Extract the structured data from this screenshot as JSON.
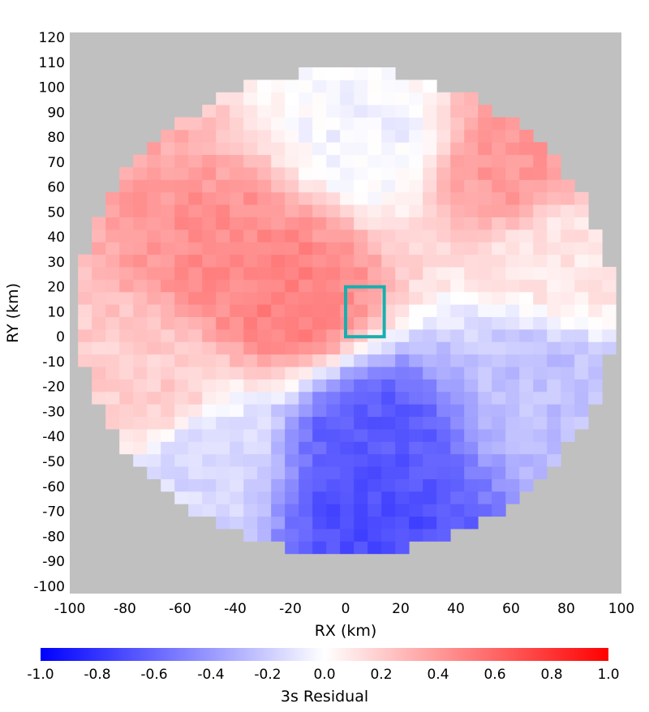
{
  "chart_data": {
    "type": "heatmap",
    "title": "",
    "xlabel": "RX (km)",
    "ylabel": "RY (km)",
    "xlim": [
      -100,
      100
    ],
    "ylim": [
      -103,
      122
    ],
    "x_ticks": [
      "-100",
      "-80",
      "-60",
      "-40",
      "-20",
      "0",
      "20",
      "40",
      "60",
      "80",
      "100"
    ],
    "y_ticks": [
      "120",
      "110",
      "100",
      "90",
      "80",
      "70",
      "60",
      "50",
      "40",
      "30",
      "20",
      "10",
      "0",
      "-10",
      "-20",
      "-30",
      "-40",
      "-50",
      "-60",
      "-70",
      "-80",
      "-90",
      "-100"
    ],
    "grid": false,
    "background_color": "#c0c0c0",
    "domain_shape": "circle",
    "domain_center_km": [
      0,
      10
    ],
    "domain_radius_km": 97,
    "cell_size_km": 5,
    "field_pattern": "red (positive) in the upper-left and along the top, a near-white band near x=0 to 20 extending upward, blue (negative) in the lower half with the strongest values around x=0 to 30, y=-50 to -85",
    "value_range": [
      -1.0,
      1.0
    ],
    "value_samples": [
      {
        "x": -40,
        "y": 30,
        "value": 0.45
      },
      {
        "x": -20,
        "y": 15,
        "value": 0.5
      },
      {
        "x": 60,
        "y": 70,
        "value": 0.4
      },
      {
        "x": 80,
        "y": 30,
        "value": 0.1
      },
      {
        "x": 10,
        "y": 80,
        "value": -0.05
      },
      {
        "x": 70,
        "y": -20,
        "value": -0.25
      },
      {
        "x": -70,
        "y": -20,
        "value": 0.2
      },
      {
        "x": -50,
        "y": -50,
        "value": -0.15
      },
      {
        "x": 10,
        "y": -40,
        "value": -0.65
      },
      {
        "x": 10,
        "y": -70,
        "value": -0.7
      }
    ],
    "highlight_box": {
      "x0": 0,
      "x1": 14,
      "y0": 0,
      "y1": 20,
      "color": "#1aaeae"
    },
    "colorbar": {
      "label": "3s Residual",
      "min": -1.0,
      "max": 1.0,
      "ticks": [
        "-1.0",
        "-0.8",
        "-0.6",
        "-0.4",
        "-0.2",
        "0.0",
        "0.2",
        "0.4",
        "0.6",
        "0.8",
        "1.0"
      ],
      "colors": [
        "#0000ff",
        "#ffffff",
        "#ff0000"
      ]
    }
  }
}
